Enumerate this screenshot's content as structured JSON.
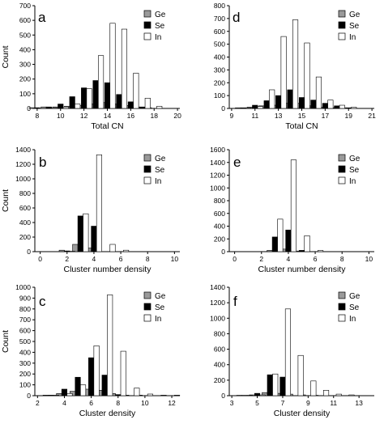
{
  "legend_labels": [
    "Ge",
    "Se",
    "In"
  ],
  "colors": {
    "Ge": "#9a9a9a",
    "Se": "#000000",
    "In": "#ffffff",
    "stroke": "#000000"
  },
  "chart_data": [
    {
      "panel": "a",
      "type": "bar",
      "xlabel": "Total CN",
      "ylabel": "Count",
      "xlim": [
        7.8,
        20.2
      ],
      "ylim": [
        0,
        700
      ],
      "xticks": [
        8,
        10,
        12,
        14,
        16,
        18,
        20
      ],
      "yticks": [
        0,
        100,
        200,
        300,
        400,
        500,
        600,
        700
      ],
      "legend_position": "top-right",
      "x": [
        8,
        9,
        10,
        11,
        12,
        13,
        14,
        15,
        16,
        17,
        18
      ],
      "series": [
        {
          "name": "Ge",
          "values": [
            5,
            10,
            10,
            15,
            20,
            30,
            40,
            30,
            20,
            10,
            5
          ]
        },
        {
          "name": "Se",
          "values": [
            5,
            10,
            30,
            80,
            140,
            190,
            175,
            95,
            45,
            10,
            0
          ]
        },
        {
          "name": "In",
          "values": [
            0,
            5,
            10,
            30,
            135,
            360,
            580,
            540,
            240,
            70,
            15
          ]
        }
      ]
    },
    {
      "panel": "d",
      "type": "bar",
      "xlabel": "Total CN",
      "ylabel": "",
      "xlim": [
        8.8,
        21.2
      ],
      "ylim": [
        0,
        800
      ],
      "xticks": [
        9,
        11,
        13,
        15,
        17,
        19,
        21
      ],
      "yticks": [
        0,
        100,
        200,
        300,
        400,
        500,
        600,
        700,
        800
      ],
      "legend_position": "top-right",
      "x": [
        10,
        11,
        12,
        13,
        14,
        15,
        16,
        17,
        18,
        19
      ],
      "series": [
        {
          "name": "Ge",
          "values": [
            5,
            10,
            20,
            25,
            40,
            40,
            20,
            10,
            5,
            5
          ]
        },
        {
          "name": "Se",
          "values": [
            5,
            25,
            60,
            100,
            145,
            85,
            65,
            40,
            20,
            5
          ]
        },
        {
          "name": "In",
          "values": [
            5,
            15,
            145,
            560,
            690,
            510,
            245,
            65,
            25,
            10
          ]
        }
      ]
    },
    {
      "panel": "b",
      "type": "bar",
      "xlabel": "Cluster number density",
      "ylabel": "Count",
      "xlim": [
        -0.4,
        10.4
      ],
      "ylim": [
        0,
        1400
      ],
      "xticks": [
        0,
        2,
        4,
        6,
        8,
        10
      ],
      "yticks": [
        0,
        200,
        400,
        600,
        800,
        1000,
        1200,
        1400
      ],
      "legend_position": "top-right",
      "x": [
        2,
        3,
        4,
        5,
        6
      ],
      "series": [
        {
          "name": "Ge",
          "values": [
            20,
            100,
            50,
            0,
            0
          ]
        },
        {
          "name": "Se",
          "values": [
            10,
            490,
            350,
            0,
            0
          ]
        },
        {
          "name": "In",
          "values": [
            5,
            520,
            1330,
            100,
            20
          ]
        }
      ]
    },
    {
      "panel": "e",
      "type": "bar",
      "xlabel": "Cluster number density",
      "ylabel": "",
      "xlim": [
        -0.4,
        10.4
      ],
      "ylim": [
        0,
        1600
      ],
      "xticks": [
        0,
        2,
        4,
        6,
        8,
        10
      ],
      "yticks": [
        0,
        200,
        400,
        600,
        800,
        1000,
        1200,
        1400,
        1600
      ],
      "legend_position": "top-right",
      "x": [
        3,
        4,
        5,
        6
      ],
      "series": [
        {
          "name": "Ge",
          "values": [
            20,
            40,
            10,
            0
          ]
        },
        {
          "name": "Se",
          "values": [
            230,
            340,
            20,
            0
          ]
        },
        {
          "name": "In",
          "values": [
            510,
            1440,
            250,
            20
          ]
        }
      ]
    },
    {
      "panel": "c",
      "type": "bar",
      "xlabel": "Cluster density",
      "ylabel": "Count",
      "xlim": [
        1.8,
        12.6
      ],
      "ylim": [
        0,
        1000
      ],
      "xticks": [
        2,
        4,
        6,
        8,
        10,
        12
      ],
      "yticks": [
        0,
        100,
        200,
        300,
        400,
        500,
        600,
        700,
        800,
        900,
        1000
      ],
      "legend_position": "top-right",
      "x": [
        3,
        4,
        5,
        6,
        7,
        8,
        9,
        10,
        11,
        12
      ],
      "series": [
        {
          "name": "Ge",
          "values": [
            5,
            20,
            40,
            60,
            50,
            20,
            5,
            5,
            0,
            0
          ]
        },
        {
          "name": "Se",
          "values": [
            5,
            60,
            170,
            350,
            190,
            10,
            0,
            0,
            0,
            0
          ]
        },
        {
          "name": "In",
          "values": [
            5,
            20,
            100,
            460,
            930,
            410,
            70,
            15,
            5,
            5
          ]
        }
      ]
    },
    {
      "panel": "f",
      "type": "bar",
      "xlabel": "Cluster density",
      "ylabel": "",
      "xlim": [
        2.8,
        14.2
      ],
      "ylim": [
        0,
        1400
      ],
      "xticks": [
        3,
        5,
        7,
        9,
        11,
        13
      ],
      "yticks": [
        0,
        200,
        400,
        600,
        800,
        1000,
        1200,
        1400
      ],
      "legend_position": "top-right",
      "x": [
        4,
        5,
        6,
        7,
        8,
        9,
        10,
        11,
        12
      ],
      "series": [
        {
          "name": "Ge",
          "values": [
            5,
            10,
            40,
            30,
            20,
            10,
            5,
            0,
            0
          ]
        },
        {
          "name": "Se",
          "values": [
            5,
            30,
            270,
            240,
            0,
            0,
            0,
            0,
            0
          ]
        },
        {
          "name": "In",
          "values": [
            5,
            10,
            280,
            1120,
            520,
            190,
            70,
            20,
            10
          ]
        }
      ]
    }
  ]
}
